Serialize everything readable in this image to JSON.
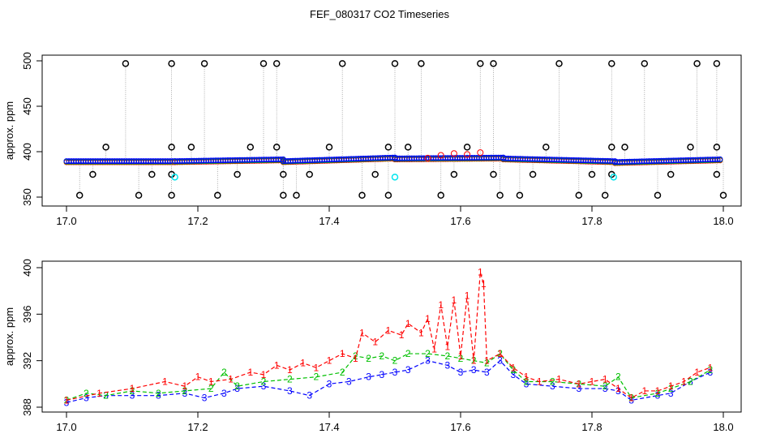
{
  "title": "FEF_080317  CO2 Timeseries",
  "colors": {
    "black": "#000000",
    "red": "#ff0000",
    "green": "#00c000",
    "blue": "#0000ff",
    "cyan": "#00e5ee",
    "gray": "#999999"
  },
  "chart_data": [
    {
      "type": "scatter",
      "ylabel": "approx. ppm",
      "xlim": [
        17.0,
        18.0
      ],
      "ylim": [
        350,
        500
      ],
      "x_ticks": [
        "17.0",
        "17.2",
        "17.4",
        "17.6",
        "17.8",
        "18.0"
      ],
      "y_ticks": [
        "350",
        "400",
        "450",
        "500"
      ],
      "baseline_segments": [
        {
          "x": [
            17.0,
            17.165
          ],
          "y": [
            389,
            389
          ]
        },
        {
          "x": [
            17.165,
            17.33
          ],
          "y": [
            389,
            391
          ]
        },
        {
          "x": [
            17.33,
            17.5
          ],
          "y": [
            389,
            393
          ]
        },
        {
          "x": [
            17.5,
            17.665
          ],
          "y": [
            392,
            393
          ]
        },
        {
          "x": [
            17.665,
            17.835
          ],
          "y": [
            392,
            389
          ]
        },
        {
          "x": [
            17.835,
            17.995
          ],
          "y": [
            388,
            391
          ]
        }
      ],
      "red_bumps": {
        "x": [
          17.55,
          17.57,
          17.59,
          17.61,
          17.63
        ],
        "y": [
          393,
          396,
          398,
          397,
          399
        ]
      },
      "spikes_high": [
        17.09,
        17.16,
        17.21,
        17.3,
        17.32,
        17.42,
        17.5,
        17.54,
        17.63,
        17.65,
        17.75,
        17.83,
        17.88,
        17.96,
        17.99
      ],
      "spikes_low": [
        17.02,
        17.11,
        17.16,
        17.23,
        17.33,
        17.35,
        17.45,
        17.49,
        17.57,
        17.66,
        17.69,
        17.78,
        17.82,
        17.9,
        18.0
      ],
      "mid_high": [
        17.06,
        17.16,
        17.19,
        17.28,
        17.32,
        17.4,
        17.49,
        17.52,
        17.61,
        17.73,
        17.83,
        17.85,
        17.95,
        17.99
      ],
      "mid_low": [
        17.04,
        17.13,
        17.16,
        17.26,
        17.33,
        17.37,
        17.47,
        17.59,
        17.65,
        17.71,
        17.8,
        17.83,
        17.92,
        17.99
      ],
      "cyan_points": {
        "x": [
          17.165,
          17.5,
          17.833
        ],
        "y": [
          372,
          372,
          372
        ]
      }
    },
    {
      "type": "line",
      "ylabel": "approx. ppm",
      "xlim": [
        17.0,
        18.0
      ],
      "ylim": [
        388,
        400
      ],
      "x_ticks": [
        "17.0",
        "17.2",
        "17.4",
        "17.6",
        "17.8",
        "18.0"
      ],
      "y_ticks": [
        "388",
        "392",
        "396",
        "400"
      ],
      "series": [
        {
          "label": "1",
          "x": [
            17.0,
            17.05,
            17.1,
            17.15,
            17.18,
            17.2,
            17.22,
            17.25,
            17.28,
            17.3,
            17.32,
            17.34,
            17.36,
            17.38,
            17.4,
            17.42,
            17.44,
            17.45,
            17.47,
            17.49,
            17.51,
            17.52,
            17.54,
            17.55,
            17.56,
            17.57,
            17.58,
            17.59,
            17.6,
            17.61,
            17.62,
            17.63,
            17.635,
            17.64,
            17.66,
            17.68,
            17.7,
            17.72,
            17.75,
            17.78,
            17.8,
            17.82,
            17.84,
            17.86,
            17.88,
            17.9,
            17.92,
            17.94,
            17.96,
            17.98
          ],
          "y": [
            388.6,
            389.2,
            389.6,
            390.2,
            389.8,
            390.6,
            390.2,
            390.4,
            391.0,
            390.8,
            391.6,
            391.2,
            391.8,
            391.4,
            392.0,
            392.6,
            392.2,
            394.4,
            393.6,
            394.6,
            394.2,
            395.2,
            394.4,
            395.6,
            393.0,
            396.8,
            393.2,
            397.2,
            392.4,
            397.6,
            392.0,
            399.6,
            398.6,
            392.0,
            392.6,
            391.4,
            390.6,
            390.2,
            390.4,
            390.0,
            390.2,
            390.4,
            389.6,
            388.8,
            389.4,
            389.4,
            389.8,
            390.2,
            391.0,
            391.4
          ]
        },
        {
          "label": "2",
          "x": [
            17.0,
            17.03,
            17.06,
            17.1,
            17.14,
            17.18,
            17.22,
            17.24,
            17.26,
            17.3,
            17.34,
            17.38,
            17.42,
            17.44,
            17.46,
            17.48,
            17.5,
            17.52,
            17.55,
            17.58,
            17.6,
            17.62,
            17.64,
            17.66,
            17.68,
            17.7,
            17.74,
            17.78,
            17.82,
            17.84,
            17.86,
            17.9,
            17.92,
            17.95,
            17.98
          ],
          "y": [
            388.6,
            389.2,
            389.0,
            389.4,
            389.2,
            389.4,
            389.6,
            391.0,
            389.8,
            390.2,
            390.4,
            390.6,
            391.0,
            392.4,
            392.2,
            392.4,
            392.0,
            392.6,
            392.6,
            392.4,
            392.2,
            392.0,
            391.8,
            392.6,
            391.2,
            390.2,
            390.2,
            390.0,
            389.8,
            390.6,
            388.8,
            389.2,
            389.6,
            390.2,
            391.2
          ]
        },
        {
          "label": "3",
          "x": [
            17.0,
            17.03,
            17.06,
            17.1,
            17.14,
            17.18,
            17.21,
            17.24,
            17.26,
            17.3,
            17.34,
            17.37,
            17.4,
            17.43,
            17.46,
            17.48,
            17.5,
            17.52,
            17.55,
            17.58,
            17.6,
            17.62,
            17.64,
            17.66,
            17.68,
            17.7,
            17.74,
            17.78,
            17.82,
            17.84,
            17.86,
            17.9,
            17.92,
            17.95,
            17.98
          ],
          "y": [
            388.4,
            388.8,
            389.0,
            389.0,
            389.0,
            389.2,
            388.8,
            389.2,
            389.6,
            389.8,
            389.4,
            389.0,
            390.0,
            390.2,
            390.6,
            390.8,
            391.0,
            391.2,
            392.0,
            391.6,
            391.0,
            391.2,
            391.0,
            392.0,
            390.8,
            390.0,
            389.8,
            389.6,
            389.6,
            389.4,
            388.6,
            389.0,
            389.2,
            390.2,
            391.0
          ]
        }
      ]
    }
  ]
}
